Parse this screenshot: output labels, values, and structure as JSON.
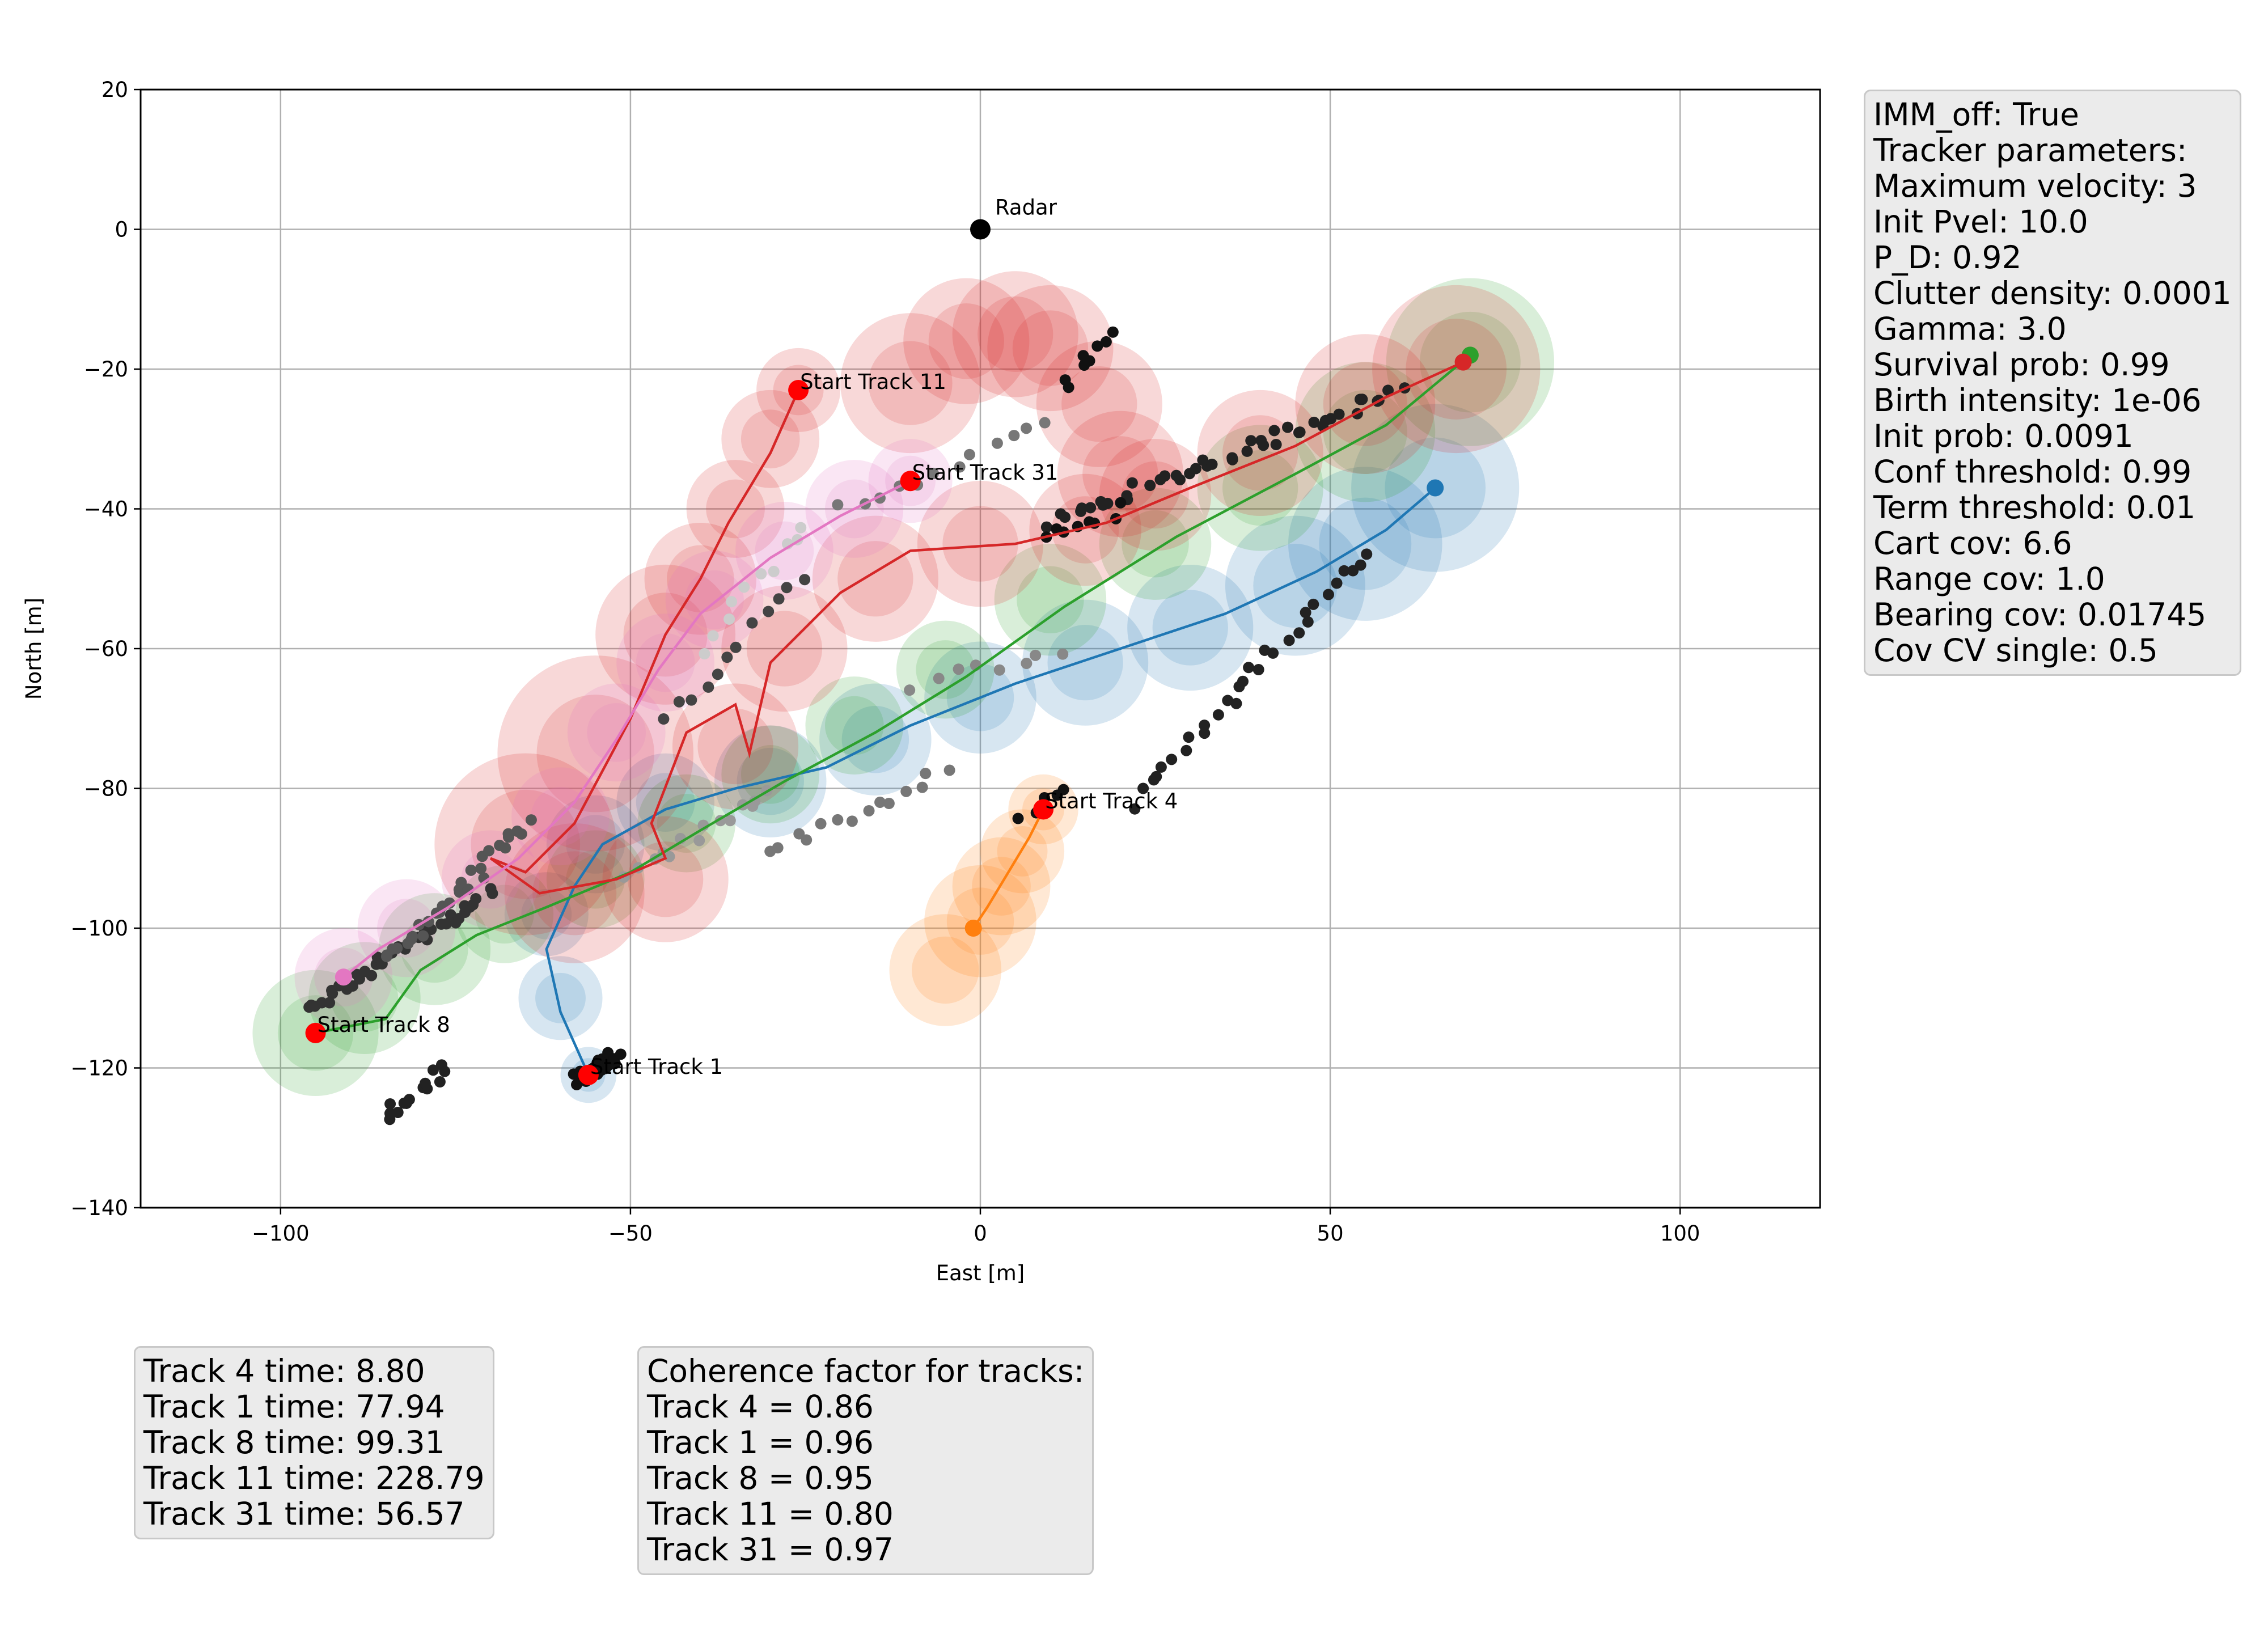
{
  "chart_data": {
    "type": "scatter",
    "xlabel": "East [m]",
    "ylabel": "North [m]",
    "xlim": [
      -120,
      120
    ],
    "ylim": [
      -140,
      20
    ],
    "xticks": [
      -100,
      -50,
      0,
      50,
      100
    ],
    "yticks": [
      20,
      0,
      -20,
      -40,
      -60,
      -80,
      -100,
      -120,
      -140
    ],
    "xtick_labels": [
      "−100",
      "−50",
      "0",
      "50",
      "100"
    ],
    "ytick_labels": [
      "20",
      "0",
      "−20",
      "−40",
      "−60",
      "−80",
      "−100",
      "−120",
      "−140"
    ],
    "grid": true,
    "radar": {
      "label": "Radar",
      "x": 0,
      "y": 0
    },
    "tracks": [
      {
        "label": "Start Track 1",
        "color": "#1f77b4",
        "cov": [
          [
            -56,
            -121,
            4
          ],
          [
            -60,
            -110,
            6
          ],
          [
            -62,
            -98,
            6
          ],
          [
            -55,
            -88,
            7
          ],
          [
            -45,
            -82,
            7
          ],
          [
            -30,
            -79,
            8
          ],
          [
            -15,
            -73,
            8
          ],
          [
            0,
            -67,
            8
          ],
          [
            15,
            -62,
            9
          ],
          [
            30,
            -57,
            9
          ],
          [
            45,
            -51,
            10
          ],
          [
            55,
            -45,
            11
          ],
          [
            65,
            -37,
            12
          ]
        ],
        "path": [
          [
            -56,
            -121
          ],
          [
            -60,
            -112
          ],
          [
            -62,
            -103
          ],
          [
            -58,
            -94
          ],
          [
            -54,
            -88
          ],
          [
            -45,
            -83
          ],
          [
            -35,
            -80
          ],
          [
            -22,
            -77
          ],
          [
            -10,
            -71
          ],
          [
            5,
            -65
          ],
          [
            20,
            -60
          ],
          [
            35,
            -55
          ],
          [
            48,
            -49
          ],
          [
            58,
            -43
          ],
          [
            65,
            -37
          ]
        ]
      },
      {
        "label": "Start Track 4",
        "color": "#ff7f0e",
        "cov": [
          [
            9,
            -83,
            5
          ],
          [
            6,
            -89,
            6
          ],
          [
            3,
            -94,
            7
          ],
          [
            0,
            -99,
            8
          ],
          [
            -5,
            -106,
            8
          ]
        ],
        "path": [
          [
            9,
            -83
          ],
          [
            7,
            -87
          ],
          [
            4,
            -92
          ],
          [
            1,
            -97
          ],
          [
            -1,
            -100
          ]
        ]
      },
      {
        "label": "Start Track 8",
        "color": "#2ca02c",
        "cov": [
          [
            -95,
            -115,
            9
          ],
          [
            -88,
            -110,
            8
          ],
          [
            -78,
            -103,
            8
          ],
          [
            -68,
            -98,
            7
          ],
          [
            -55,
            -93,
            7
          ],
          [
            -42,
            -85,
            7
          ],
          [
            -30,
            -78,
            7
          ],
          [
            -18,
            -71,
            7
          ],
          [
            -5,
            -63,
            7
          ],
          [
            10,
            -53,
            8
          ],
          [
            25,
            -45,
            8
          ],
          [
            40,
            -37,
            9
          ],
          [
            55,
            -29,
            10
          ],
          [
            70,
            -19,
            12
          ]
        ],
        "path": [
          [
            -95,
            -115
          ],
          [
            -85,
            -113
          ],
          [
            -80,
            -106
          ],
          [
            -72,
            -101
          ],
          [
            -62,
            -97
          ],
          [
            -50,
            -92
          ],
          [
            -40,
            -86
          ],
          [
            -28,
            -79
          ],
          [
            -15,
            -72
          ],
          [
            -2,
            -64
          ],
          [
            12,
            -54
          ],
          [
            28,
            -44
          ],
          [
            45,
            -35
          ],
          [
            58,
            -28
          ],
          [
            70,
            -18
          ]
        ]
      },
      {
        "label": "Start Track 11",
        "color": "#d62728",
        "cov": [
          [
            -26,
            -23,
            6
          ],
          [
            -30,
            -30,
            7
          ],
          [
            -35,
            -40,
            7
          ],
          [
            -40,
            -50,
            8
          ],
          [
            -45,
            -58,
            10
          ],
          [
            -55,
            -75,
            14
          ],
          [
            -65,
            -88,
            13
          ],
          [
            -58,
            -95,
            10
          ],
          [
            -45,
            -93,
            9
          ],
          [
            -35,
            -74,
            9
          ],
          [
            -28,
            -60,
            9
          ],
          [
            -15,
            -50,
            9
          ],
          [
            0,
            -45,
            9
          ],
          [
            15,
            -43,
            8
          ],
          [
            25,
            -38,
            8
          ],
          [
            40,
            -32,
            9
          ],
          [
            55,
            -25,
            10
          ],
          [
            68,
            -20,
            12
          ],
          [
            20,
            -35,
            9
          ],
          [
            17,
            -25,
            9
          ],
          [
            10,
            -17,
            9
          ],
          [
            5,
            -15,
            9
          ],
          [
            -2,
            -16,
            9
          ],
          [
            -10,
            -22,
            10
          ]
        ],
        "path": [
          [
            -26,
            -23
          ],
          [
            -30,
            -32
          ],
          [
            -36,
            -42
          ],
          [
            -40,
            -50
          ],
          [
            -45,
            -58
          ],
          [
            -50,
            -70
          ],
          [
            -58,
            -85
          ],
          [
            -65,
            -92
          ],
          [
            -70,
            -90
          ],
          [
            -63,
            -95
          ],
          [
            -52,
            -93
          ],
          [
            -45,
            -90
          ],
          [
            -47,
            -85
          ],
          [
            -42,
            -72
          ],
          [
            -35,
            -68
          ],
          [
            -33,
            -75
          ],
          [
            -30,
            -62
          ],
          [
            -20,
            -52
          ],
          [
            -10,
            -46
          ],
          [
            5,
            -45
          ],
          [
            18,
            -42
          ],
          [
            30,
            -37
          ],
          [
            45,
            -31
          ],
          [
            58,
            -24
          ],
          [
            69,
            -19
          ]
        ]
      },
      {
        "label": "Start Track 31",
        "color": "#e377c2",
        "cov": [
          [
            -10,
            -36,
            6
          ],
          [
            -18,
            -40,
            7
          ],
          [
            -28,
            -46,
            7
          ],
          [
            -38,
            -53,
            7
          ],
          [
            -45,
            -62,
            7
          ],
          [
            -52,
            -72,
            7
          ],
          [
            -60,
            -84,
            7
          ],
          [
            -70,
            -93,
            7
          ],
          [
            -82,
            -100,
            7
          ],
          [
            -91,
            -107,
            7
          ]
        ],
        "path": [
          [
            -10,
            -36
          ],
          [
            -20,
            -41
          ],
          [
            -30,
            -47
          ],
          [
            -40,
            -55
          ],
          [
            -46,
            -63
          ],
          [
            -52,
            -73
          ],
          [
            -58,
            -82
          ],
          [
            -66,
            -90
          ],
          [
            -76,
            -97
          ],
          [
            -86,
            -103
          ],
          [
            -91,
            -107
          ]
        ]
      }
    ],
    "track_ends": [
      {
        "color": "#1f77b4",
        "x": 65,
        "y": -37
      },
      {
        "color": "#ff7f0e",
        "x": -1,
        "y": -100
      },
      {
        "color": "#2ca02c",
        "x": 70,
        "y": -18
      },
      {
        "color": "#d62728",
        "x": 69,
        "y": -19
      },
      {
        "color": "#e377c2",
        "x": -91,
        "y": -107
      }
    ],
    "track_starts": [
      {
        "label": "Start Track 1",
        "x": -56,
        "y": -121
      },
      {
        "label": "Start Track 4",
        "x": 9,
        "y": -83
      },
      {
        "label": "Start Track 8",
        "x": -95,
        "y": -115
      },
      {
        "label": "Start Track 11",
        "x": -26,
        "y": -23
      },
      {
        "label": "Start Track 31",
        "x": -10,
        "y": -36
      }
    ],
    "detections": [
      {
        "x0": -58,
        "y0": -122,
        "x1": -52,
        "y1": -118,
        "n": 35,
        "shade": "#111111"
      },
      {
        "x0": -96,
        "y0": -112,
        "x1": -70,
        "y1": -95,
        "n": 40,
        "shade": "#333333"
      },
      {
        "x0": -85,
        "y0": -127,
        "x1": -76,
        "y1": -120,
        "n": 14,
        "shade": "#222222"
      },
      {
        "x0": -85,
        "y0": -105,
        "x1": -65,
        "y1": -85,
        "n": 30,
        "shade": "#555555"
      },
      {
        "x0": -50,
        "y0": -93,
        "x1": -30,
        "y1": -80,
        "n": 14,
        "shade": "#999999"
      },
      {
        "x0": -30,
        "y0": -89,
        "x1": -5,
        "y1": -78,
        "n": 14,
        "shade": "#777777"
      },
      {
        "x0": 10,
        "y0": -42,
        "x1": 60,
        "y1": -23,
        "n": 45,
        "shade": "#222222"
      },
      {
        "x0": 10,
        "y0": -44,
        "x1": 20,
        "y1": -40,
        "n": 8,
        "shade": "#111111"
      },
      {
        "x0": 12,
        "y0": -22,
        "x1": 19,
        "y1": -15,
        "n": 8,
        "shade": "#111111"
      },
      {
        "x0": 22,
        "y0": -82,
        "x1": 55,
        "y1": -46,
        "n": 30,
        "shade": "#222222"
      },
      {
        "x0": -10,
        "y0": -65,
        "x1": 12,
        "y1": -60,
        "n": 8,
        "shade": "#888888"
      },
      {
        "x0": -45,
        "y0": -70,
        "x1": -25,
        "y1": -50,
        "n": 12,
        "shade": "#444444"
      },
      {
        "x0": -20,
        "y0": -40,
        "x1": 10,
        "y1": -28,
        "n": 12,
        "shade": "#777777"
      },
      {
        "x0": -40,
        "y0": -60,
        "x1": -25,
        "y1": -42,
        "n": 10,
        "shade": "#cccccc"
      },
      {
        "x0": 6,
        "y0": -84,
        "x1": 12,
        "y1": -80,
        "n": 6,
        "shade": "#111111"
      }
    ]
  },
  "params_box": [
    "IMM_off: True",
    "Tracker parameters:",
    "Maximum velocity: 3",
    "Init Pvel: 10.0",
    "P_D: 0.92",
    "Clutter density: 0.0001",
    "Gamma: 3.0",
    "Survival prob: 0.99",
    "Birth intensity: 1e-06",
    "Init prob: 0.0091",
    "Conf threshold: 0.99",
    "Term threshold: 0.01",
    "Cart cov: 6.6",
    "Range cov: 1.0",
    "Bearing cov: 0.01745",
    "Cov CV single: 0.5"
  ],
  "times_box": [
    "Track 4 time: 8.80",
    "Track 1 time: 77.94",
    "Track 8 time: 99.31",
    "Track 11 time: 228.79",
    "Track 31 time: 56.57"
  ],
  "coherence_box": [
    "Coherence factor for tracks:",
    "Track 4 = 0.86",
    "Track 1 = 0.96",
    "Track 8 = 0.95",
    "Track 11 = 0.80",
    "Track 31 = 0.97"
  ]
}
